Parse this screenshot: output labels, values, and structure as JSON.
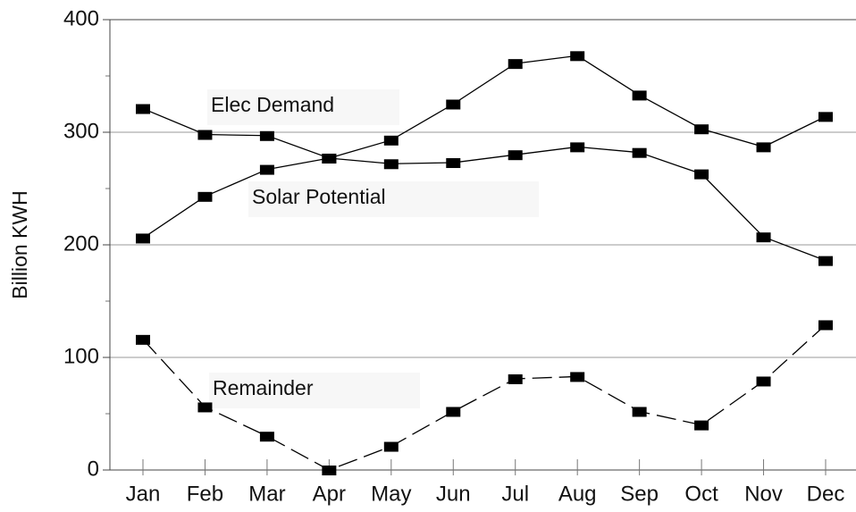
{
  "chart_data": {
    "type": "line",
    "y_label": "Billion KWH",
    "categories": [
      "Jan",
      "Feb",
      "Mar",
      "Apr",
      "May",
      "Jun",
      "Jul",
      "Aug",
      "Sep",
      "Oct",
      "Nov",
      "Dec"
    ],
    "series": [
      {
        "name": "Elec Demand",
        "color": "#000000",
        "dashed": false,
        "values": [
          321,
          298,
          297,
          277,
          293,
          325,
          361,
          368,
          333,
          303,
          287,
          314
        ]
      },
      {
        "name": "Solar Potential",
        "color": "#000000",
        "dashed": false,
        "values": [
          206,
          243,
          267,
          277,
          272,
          273,
          280,
          287,
          282,
          263,
          207,
          186
        ]
      },
      {
        "name": "Remainder",
        "color": "#000000",
        "dashed": true,
        "values": [
          116,
          56,
          30,
          0,
          21,
          52,
          81,
          83,
          52,
          40,
          79,
          129
        ]
      }
    ],
    "ylim": [
      0,
      400
    ],
    "yticks": [
      0,
      100,
      200,
      300,
      400
    ],
    "yminorticks": [
      50,
      150,
      250,
      350
    ],
    "grid": true
  }
}
